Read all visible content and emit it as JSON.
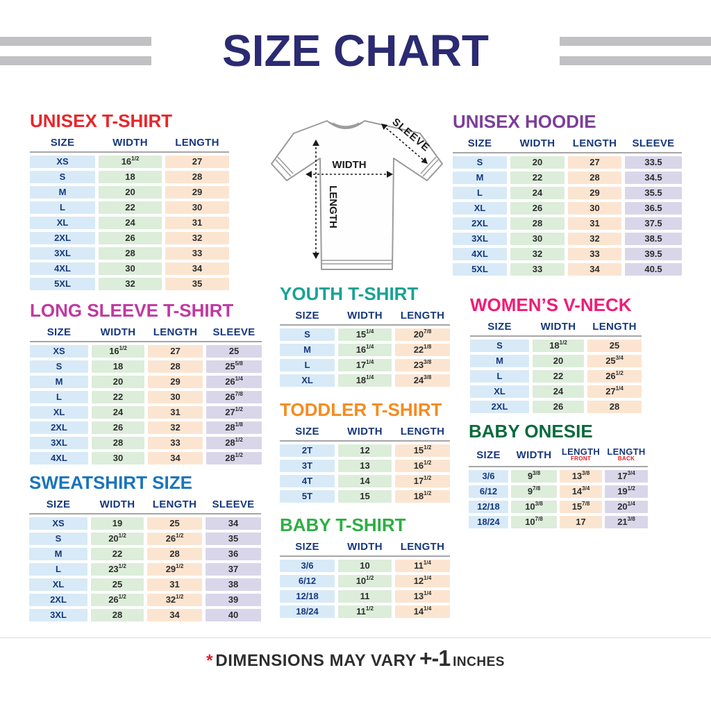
{
  "header": {
    "title": "SIZE CHART"
  },
  "footer": {
    "asterisk": "*",
    "text": "DIMENSIONS MAY VARY",
    "plus_minus": "+-1",
    "unit": "INCHES"
  },
  "diagram": {
    "width_label": "WIDTH",
    "length_label": "LENGTH",
    "sleeve_label": "SLEEVE"
  },
  "colors": {
    "cell_size": "#d8eaf7",
    "cell_width": "#dcedda",
    "cell_length": "#fbe5d1",
    "cell_sleeve": "#d9d6ea",
    "header_text": "#17387d",
    "value_text": "#2d2d2d",
    "main_title": "#2b2a72",
    "stripe": "#c1c1c3",
    "asterisk_red": "#e02025"
  },
  "tables": [
    {
      "id": "unisex-tshirt",
      "title": "UNISEX T-SHIRT",
      "title_color": "#e8262c",
      "columns": [
        {
          "label": "SIZE"
        },
        {
          "label": "WIDTH"
        },
        {
          "label": "LENGTH"
        }
      ],
      "rows": [
        [
          "XS",
          "16 1/2",
          "27"
        ],
        [
          "S",
          "18",
          "28"
        ],
        [
          "M",
          "20",
          "29"
        ],
        [
          "L",
          "22",
          "30"
        ],
        [
          "XL",
          "24",
          "31"
        ],
        [
          "2XL",
          "26",
          "32"
        ],
        [
          "3XL",
          "28",
          "33"
        ],
        [
          "4XL",
          "30",
          "34"
        ],
        [
          "5XL",
          "32",
          "35"
        ]
      ]
    },
    {
      "id": "long-sleeve",
      "title": "LONG SLEEVE T-SHIRT",
      "title_color": "#c0399f",
      "columns": [
        {
          "label": "SIZE"
        },
        {
          "label": "WIDTH"
        },
        {
          "label": "LENGTH"
        },
        {
          "label": "SLEEVE"
        }
      ],
      "rows": [
        [
          "XS",
          "16 1/2",
          "27",
          "25"
        ],
        [
          "S",
          "18",
          "28",
          "25 5/8"
        ],
        [
          "M",
          "20",
          "29",
          "26 1/4"
        ],
        [
          "L",
          "22",
          "30",
          "26 7/8"
        ],
        [
          "XL",
          "24",
          "31",
          "27 1/2"
        ],
        [
          "2XL",
          "26",
          "32",
          "28 1/8"
        ],
        [
          "3XL",
          "28",
          "33",
          "28 1/2"
        ],
        [
          "4XL",
          "30",
          "34",
          "28 1/2"
        ]
      ]
    },
    {
      "id": "sweatshirt",
      "title": "SWEATSHIRT SIZE",
      "title_color": "#1b74bc",
      "columns": [
        {
          "label": "SIZE"
        },
        {
          "label": "WIDTH"
        },
        {
          "label": "LENGTH"
        },
        {
          "label": "SLEEVE"
        }
      ],
      "rows": [
        [
          "XS",
          "19",
          "25",
          "34"
        ],
        [
          "S",
          "20 1/2",
          "26 1/2",
          "35"
        ],
        [
          "M",
          "22",
          "28",
          "36"
        ],
        [
          "L",
          "23 1/2",
          "29 1/2",
          "37"
        ],
        [
          "XL",
          "25",
          "31",
          "38"
        ],
        [
          "2XL",
          "26 1/2",
          "32 1/2",
          "39"
        ],
        [
          "3XL",
          "28",
          "34",
          "40"
        ]
      ]
    },
    {
      "id": "youth",
      "title": "YOUTH T-SHIRT",
      "title_color": "#16a393",
      "columns": [
        {
          "label": "SIZE"
        },
        {
          "label": "WIDTH"
        },
        {
          "label": "LENGTH"
        }
      ],
      "rows": [
        [
          "S",
          "15 1/4",
          "20 7/8"
        ],
        [
          "M",
          "16 1/4",
          "22 1/8"
        ],
        [
          "L",
          "17 1/4",
          "23 3/8"
        ],
        [
          "XL",
          "18 1/4",
          "24 3/8"
        ]
      ]
    },
    {
      "id": "toddler",
      "title": "TODDLER T-SHIRT",
      "title_color": "#f68b1f",
      "columns": [
        {
          "label": "SIZE"
        },
        {
          "label": "WIDTH"
        },
        {
          "label": "LENGTH"
        }
      ],
      "rows": [
        [
          "2T",
          "12",
          "15 1/2"
        ],
        [
          "3T",
          "13",
          "16 1/2"
        ],
        [
          "4T",
          "14",
          "17 1/2"
        ],
        [
          "5T",
          "15",
          "18 1/2"
        ]
      ]
    },
    {
      "id": "baby-tshirt",
      "title": "BABY T-SHIRT",
      "title_color": "#2fae44",
      "columns": [
        {
          "label": "SIZE"
        },
        {
          "label": "WIDTH"
        },
        {
          "label": "LENGTH"
        }
      ],
      "rows": [
        [
          "3/6",
          "10",
          "11 1/4"
        ],
        [
          "6/12",
          "10 1/2",
          "12 1/4"
        ],
        [
          "12/18",
          "11",
          "13 1/4"
        ],
        [
          "18/24",
          "11 1/2",
          "14 1/4"
        ]
      ]
    },
    {
      "id": "unisex-hoodie",
      "title": "UNISEX HOODIE",
      "title_color": "#7b3f98",
      "columns": [
        {
          "label": "SIZE"
        },
        {
          "label": "WIDTH"
        },
        {
          "label": "LENGTH"
        },
        {
          "label": "SLEEVE"
        }
      ],
      "rows": [
        [
          "S",
          "20",
          "27",
          "33.5"
        ],
        [
          "M",
          "22",
          "28",
          "34.5"
        ],
        [
          "L",
          "24",
          "29",
          "35.5"
        ],
        [
          "XL",
          "26",
          "30",
          "36.5"
        ],
        [
          "2XL",
          "28",
          "31",
          "37.5"
        ],
        [
          "3XL",
          "30",
          "32",
          "38.5"
        ],
        [
          "4XL",
          "32",
          "33",
          "39.5"
        ],
        [
          "5XL",
          "33",
          "34",
          "40.5"
        ]
      ]
    },
    {
      "id": "womens-vneck",
      "title": "WOMEN’S V-NECK",
      "title_color": "#ee1d77",
      "columns": [
        {
          "label": "SIZE"
        },
        {
          "label": "WIDTH"
        },
        {
          "label": "LENGTH"
        }
      ],
      "rows": [
        [
          "S",
          "18 1/2",
          "25"
        ],
        [
          "M",
          "20",
          "25 3/4"
        ],
        [
          "L",
          "22",
          "26 1/2"
        ],
        [
          "XL",
          "24",
          "27 1/4"
        ],
        [
          "2XL",
          "26",
          "28"
        ]
      ]
    },
    {
      "id": "baby-onesie",
      "title": "BABY ONESIE",
      "title_color": "#056b3b",
      "columns": [
        {
          "label": "SIZE"
        },
        {
          "label": "WIDTH"
        },
        {
          "label": "LENGTH",
          "sub": "FRONT"
        },
        {
          "label": "LENGTH",
          "sub": "BACK"
        }
      ],
      "rows": [
        [
          "3/6",
          "9 3/8",
          "13 3/8",
          "17 3/4"
        ],
        [
          "6/12",
          "9 7/8",
          "14 3/4",
          "19 1/2"
        ],
        [
          "12/18",
          "10 3/8",
          "15 7/8",
          "20 1/4"
        ],
        [
          "18/24",
          "10 7/8",
          "17",
          "21 3/8"
        ]
      ]
    }
  ]
}
